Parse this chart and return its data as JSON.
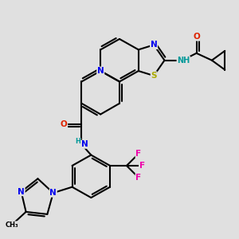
{
  "bg_color": "#e0e0e0",
  "bond_color": "#000000",
  "bond_width": 1.5,
  "atom_colors": {
    "N": "#0000ee",
    "O": "#dd2200",
    "S": "#aaaa00",
    "F": "#ee00aa",
    "H": "#009999",
    "C": "#000000"
  },
  "font_size_atom": 7.5,
  "font_size_small": 6.5
}
